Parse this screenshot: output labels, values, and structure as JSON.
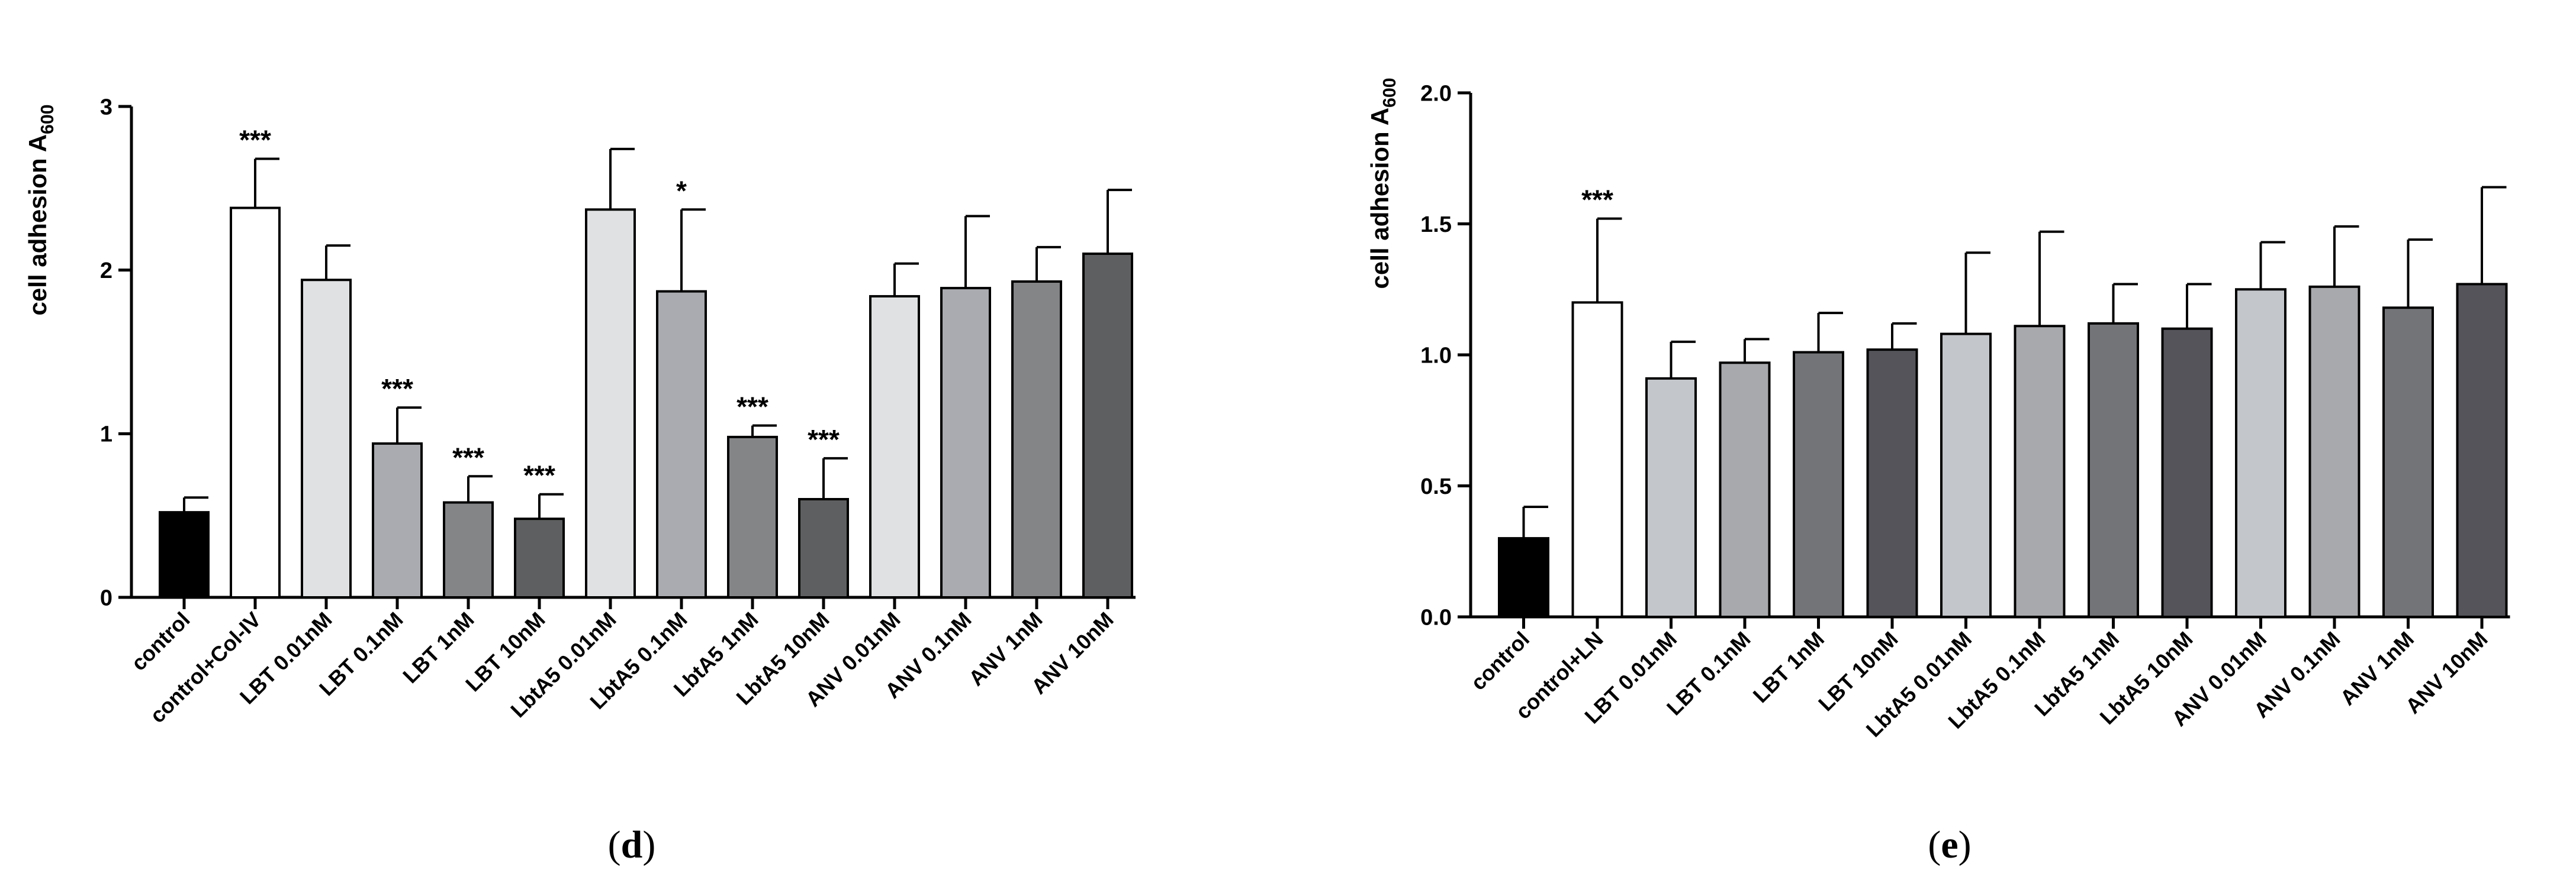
{
  "chart_data": [
    {
      "type": "bar",
      "panel_label": "(d)",
      "ylabel": "cell adhesion A",
      "ylabel_sub": "600",
      "ylim": [
        0,
        3
      ],
      "yticks": [
        "0",
        "1",
        "2",
        "3"
      ],
      "ytick_values": [
        0,
        1,
        2,
        3
      ],
      "categories": [
        "control",
        "control+Col-IV",
        "LBT 0.01nM",
        "LBT 0.1nM",
        "LBT 1nM",
        "LBT 10nM",
        "LbtA5 0.01nM",
        "LbtA5 0.1nM",
        "LbtA5 1nM",
        "LbtA5 10nM",
        "ANV 0.01nM",
        "ANV 0.1nM",
        "ANV 1nM",
        "ANV 10nM"
      ],
      "values": [
        0.52,
        2.38,
        1.94,
        0.94,
        0.58,
        0.48,
        2.37,
        1.87,
        0.98,
        0.6,
        1.84,
        1.89,
        1.93,
        2.1
      ],
      "errors": [
        0.09,
        0.3,
        0.21,
        0.22,
        0.16,
        0.15,
        0.37,
        0.5,
        0.07,
        0.25,
        0.2,
        0.44,
        0.21,
        0.39
      ],
      "significance": [
        "",
        "***",
        "",
        "***",
        "***",
        "***",
        "",
        "*",
        "***",
        "***",
        "",
        "",
        "",
        ""
      ],
      "colors": [
        "#000000",
        "#ffffff",
        "#dfe1e2",
        "#a9abb0",
        "#838587",
        "#5e5f60",
        "#dfe1e2",
        "#a9abb0",
        "#838587",
        "#5e5f60",
        "#dfe1e2",
        "#a9abb0",
        "#838587",
        "#5e5f60"
      ]
    },
    {
      "type": "bar",
      "panel_label": "(e)",
      "ylabel": "cell adhesion A",
      "ylabel_sub": "600",
      "ylim": [
        0,
        2
      ],
      "yticks": [
        "0.0",
        "0.5",
        "1.0",
        "1.5",
        "2.0"
      ],
      "ytick_values": [
        0,
        0.5,
        1,
        1.5,
        2
      ],
      "categories": [
        "control",
        "control+LN",
        "LBT 0.01nM",
        "LBT 0.1nM",
        "LBT 1nM",
        "LBT 10nM",
        "LbtA5 0.01nM",
        "LbtA5 0.1nM",
        "LbtA5 1nM",
        "LbtA5 10nM",
        "ANV 0.01nM",
        "ANV 0.1nM",
        "ANV 1nM",
        "ANV 10nM"
      ],
      "values": [
        0.3,
        1.2,
        0.91,
        0.97,
        1.01,
        1.02,
        1.08,
        1.11,
        1.12,
        1.1,
        1.25,
        1.26,
        1.18,
        1.27
      ],
      "errors": [
        0.12,
        0.32,
        0.14,
        0.09,
        0.15,
        0.1,
        0.31,
        0.36,
        0.15,
        0.17,
        0.18,
        0.23,
        0.26,
        0.37
      ],
      "significance": [
        "",
        "***",
        "",
        "",
        "",
        "",
        "",
        "",
        "",
        "",
        "",
        "",
        "",
        ""
      ],
      "colors": [
        "#000000",
        "#ffffff",
        "#c3c6ca",
        "#a8a9ac",
        "#737477",
        "#54545a",
        "#c3c6ca",
        "#a8a9ac",
        "#737477",
        "#54545a",
        "#c3c6ca",
        "#a8a9ac",
        "#737477",
        "#54545a"
      ]
    }
  ]
}
